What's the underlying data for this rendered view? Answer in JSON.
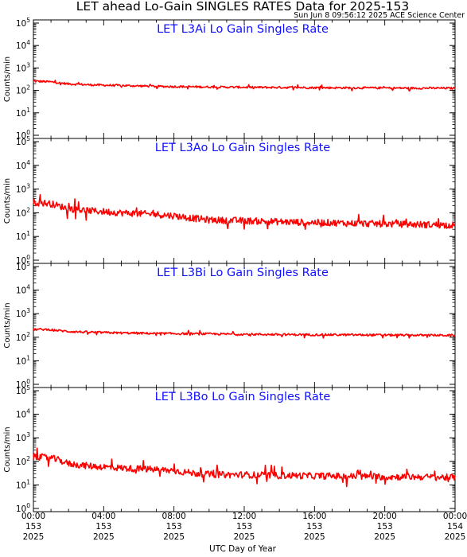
{
  "header": {
    "title": "LET ahead Lo-Gain SINGLES RATES Data for 2025-153",
    "stamp": "Sun Jun  8 09:56:12 2025 ACE Science Center"
  },
  "colors": {
    "series": "#ff0000",
    "panel_title": "#1010ff",
    "axis": "#000000"
  },
  "x_axis": {
    "label": "UTC Day of Year",
    "ticks": [
      {
        "t": 0,
        "time": "00:00",
        "doy": "153",
        "year": "2025"
      },
      {
        "t": 4,
        "time": "04:00",
        "doy": "153",
        "year": "2025"
      },
      {
        "t": 8,
        "time": "08:00",
        "doy": "153",
        "year": "2025"
      },
      {
        "t": 12,
        "time": "12:00",
        "doy": "153",
        "year": "2025"
      },
      {
        "t": 16,
        "time": "16:00",
        "doy": "153",
        "year": "2025"
      },
      {
        "t": 20,
        "time": "20:00",
        "doy": "153",
        "year": "2025"
      },
      {
        "t": 24,
        "time": "00:00",
        "doy": "154",
        "year": "2025"
      }
    ]
  },
  "chart_data": [
    {
      "type": "line",
      "title": "LET L3Ai Lo Gain Singles Rate",
      "ylabel": "Counts/min",
      "yscale": "log",
      "ylim": [
        1,
        100000
      ],
      "yticks": [
        {
          "base": "10",
          "exp": "0"
        },
        {
          "base": "10",
          "exp": "1"
        },
        {
          "base": "10",
          "exp": "2"
        },
        {
          "base": "10",
          "exp": "3"
        },
        {
          "base": "10",
          "exp": "4"
        },
        {
          "base": "10",
          "exp": "5"
        }
      ],
      "xlim": [
        0,
        24
      ],
      "x_unit": "hours UTC",
      "series": [
        {
          "x": [
            0,
            0.5,
            1,
            1.5,
            2,
            3,
            4,
            5,
            6,
            7,
            8,
            9,
            10,
            11,
            12,
            13,
            14,
            15,
            16,
            17,
            18,
            19,
            20,
            21,
            22,
            23,
            24
          ],
          "values": [
            260,
            250,
            240,
            215,
            195,
            180,
            170,
            165,
            158,
            152,
            148,
            145,
            142,
            140,
            138,
            136,
            135,
            134,
            132,
            131,
            130,
            129,
            128,
            127,
            126,
            126,
            125
          ]
        }
      ]
    },
    {
      "type": "line",
      "title": "LET L3Ao Lo Gain Singles Rate",
      "ylabel": "Counts/min",
      "yscale": "log",
      "ylim": [
        1,
        100000
      ],
      "yticks": [
        {
          "base": "10",
          "exp": "0"
        },
        {
          "base": "10",
          "exp": "1"
        },
        {
          "base": "10",
          "exp": "2"
        },
        {
          "base": "10",
          "exp": "3"
        },
        {
          "base": "10",
          "exp": "4"
        },
        {
          "base": "10",
          "exp": "5"
        }
      ],
      "xlim": [
        0,
        24
      ],
      "x_unit": "hours UTC",
      "series": [
        {
          "x": [
            0,
            0.5,
            1,
            1.5,
            2,
            3,
            4,
            5,
            6,
            7,
            8,
            9,
            10,
            11,
            12,
            13,
            14,
            15,
            16,
            17,
            18,
            19,
            20,
            21,
            22,
            23,
            24
          ],
          "values": [
            270,
            260,
            240,
            190,
            150,
            125,
            112,
            100,
            92,
            85,
            75,
            60,
            50,
            48,
            46,
            44,
            42,
            40,
            39,
            38,
            36,
            35,
            34,
            33,
            32,
            31,
            30
          ]
        }
      ]
    },
    {
      "type": "line",
      "title": "LET L3Bi Lo Gain Singles Rate",
      "ylabel": "Counts/min",
      "yscale": "log",
      "ylim": [
        1,
        100000
      ],
      "yticks": [
        {
          "base": "10",
          "exp": "0"
        },
        {
          "base": "10",
          "exp": "1"
        },
        {
          "base": "10",
          "exp": "2"
        },
        {
          "base": "10",
          "exp": "3"
        },
        {
          "base": "10",
          "exp": "4"
        },
        {
          "base": "10",
          "exp": "5"
        }
      ],
      "xlim": [
        0,
        24
      ],
      "x_unit": "hours UTC",
      "series": [
        {
          "x": [
            0,
            0.5,
            1,
            1.5,
            2,
            3,
            4,
            5,
            6,
            7,
            8,
            9,
            10,
            11,
            12,
            13,
            14,
            15,
            16,
            17,
            18,
            19,
            20,
            21,
            22,
            23,
            24
          ],
          "values": [
            215,
            215,
            210,
            190,
            175,
            165,
            158,
            152,
            148,
            145,
            142,
            140,
            138,
            136,
            134,
            132,
            130,
            129,
            128,
            127,
            126,
            125,
            124,
            123,
            122,
            121,
            120
          ]
        }
      ]
    },
    {
      "type": "line",
      "title": "LET L3Bo Lo Gain Singles Rate",
      "ylabel": "Counts/min",
      "yscale": "log",
      "ylim": [
        1,
        100000
      ],
      "yticks": [
        {
          "base": "10",
          "exp": "0"
        },
        {
          "base": "10",
          "exp": "1"
        },
        {
          "base": "10",
          "exp": "2"
        },
        {
          "base": "10",
          "exp": "3"
        },
        {
          "base": "10",
          "exp": "4"
        },
        {
          "base": "10",
          "exp": "5"
        }
      ],
      "xlim": [
        0,
        24
      ],
      "x_unit": "hours UTC",
      "series": [
        {
          "x": [
            0,
            0.5,
            1,
            1.5,
            2,
            3,
            4,
            5,
            6,
            7,
            8,
            9,
            10,
            11,
            12,
            13,
            14,
            15,
            16,
            17,
            18,
            19,
            20,
            21,
            22,
            23,
            24
          ],
          "values": [
            155,
            150,
            140,
            110,
            80,
            65,
            58,
            52,
            48,
            45,
            40,
            32,
            28,
            27,
            27,
            26,
            25,
            25,
            24,
            24,
            23,
            23,
            22,
            22,
            22,
            21,
            21
          ]
        }
      ]
    }
  ]
}
